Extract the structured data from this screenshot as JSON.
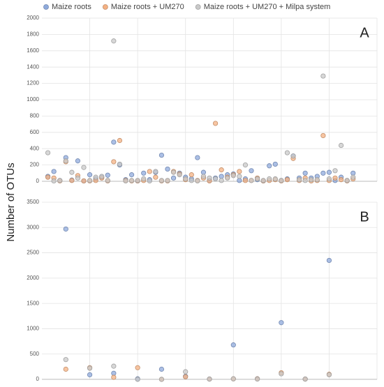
{
  "chart_data": [
    {
      "type": "scatter",
      "panel_label": "A",
      "ylabel": "Number of OTUs",
      "x": [
        1,
        2,
        3,
        4,
        5,
        6,
        7,
        8,
        9,
        10,
        11,
        12,
        13,
        14,
        15,
        16,
        17,
        18,
        19,
        20,
        21,
        22,
        23,
        24,
        25,
        26,
        27,
        28,
        29,
        30,
        31,
        32,
        33,
        34,
        35,
        36,
        37,
        38,
        39,
        40,
        41,
        42,
        43,
        44,
        45,
        46,
        47,
        48,
        49,
        50,
        51,
        52
      ],
      "xlim": [
        0,
        56
      ],
      "xticks": [
        8,
        16,
        24,
        32,
        40,
        48,
        56
      ],
      "ylim": [
        0,
        2000
      ],
      "yticks": [
        0,
        200,
        400,
        600,
        800,
        1000,
        1200,
        1400,
        1600,
        1800,
        2000
      ],
      "grid": true,
      "legend": "top",
      "series": [
        {
          "name": "Maize roots",
          "color": "#8faadc",
          "values": [
            60,
            120,
            10,
            290,
            15,
            250,
            5,
            80,
            30,
            50,
            75,
            480,
            200,
            20,
            80,
            5,
            100,
            20,
            110,
            320,
            150,
            40,
            100,
            50,
            30,
            290,
            110,
            10,
            40,
            60,
            80,
            90,
            10,
            30,
            130,
            20,
            5,
            190,
            210,
            10,
            30,
            310,
            40,
            100,
            40,
            60,
            100,
            110,
            10,
            50,
            10,
            100
          ]
        },
        {
          "name": "Maize roots + UM270",
          "color": "#f4b183",
          "values": [
            50,
            40,
            5,
            240,
            10,
            70,
            5,
            5,
            10,
            40,
            5,
            240,
            500,
            10,
            5,
            5,
            10,
            120,
            50,
            5,
            5,
            120,
            90,
            20,
            80,
            10,
            40,
            5,
            710,
            140,
            50,
            80,
            120,
            10,
            10,
            40,
            5,
            10,
            20,
            5,
            20,
            280,
            10,
            40,
            5,
            10,
            560,
            10,
            40,
            20,
            5,
            30
          ]
        },
        {
          "name": "Maize roots + UM270 + Milpa system",
          "color": "#c9c9c9",
          "values": [
            350,
            5,
            10,
            250,
            110,
            40,
            170,
            10,
            50,
            60,
            10,
            1720,
            210,
            5,
            10,
            10,
            30,
            5,
            120,
            10,
            10,
            110,
            80,
            30,
            10,
            5,
            60,
            40,
            30,
            10,
            40,
            70,
            60,
            200,
            10,
            30,
            10,
            30,
            30,
            10,
            350,
            310,
            20,
            10,
            20,
            20,
            1290,
            30,
            130,
            440,
            10,
            50
          ]
        }
      ]
    },
    {
      "type": "scatter",
      "panel_label": "B",
      "x": [
        1,
        2,
        3,
        4,
        5,
        6,
        7,
        8,
        9,
        10,
        11,
        12
      ],
      "xlim": [
        0,
        14
      ],
      "xticks": [
        2,
        4,
        6,
        8,
        10,
        12,
        14
      ],
      "ylim": [
        0,
        3500
      ],
      "yticks": [
        0,
        500,
        1000,
        1500,
        2000,
        2500,
        3000,
        3500
      ],
      "grid": true,
      "series": [
        {
          "color": "#8faadc",
          "values": [
            2970,
            90,
            120,
            10,
            200,
            60,
            5,
            680,
            10,
            1120,
            5,
            2350
          ]
        },
        {
          "color": "#f4b183",
          "values": [
            200,
            230,
            40,
            230,
            0,
            50,
            5,
            10,
            10,
            130,
            5,
            100
          ]
        },
        {
          "color": "#c9c9c9",
          "values": [
            390,
            220,
            260,
            0,
            0,
            150,
            5,
            10,
            5,
            110,
            5,
            90
          ]
        }
      ]
    }
  ]
}
